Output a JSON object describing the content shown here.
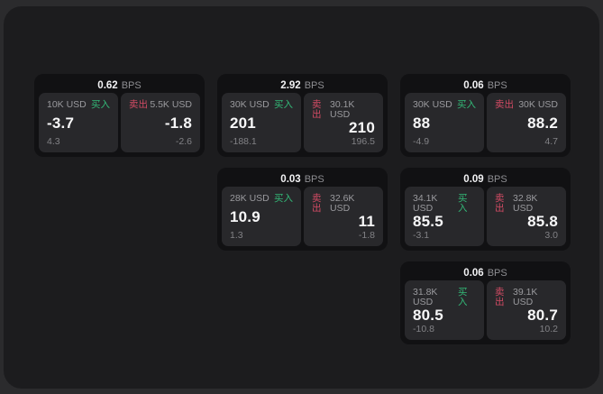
{
  "labels": {
    "bps_unit": "BPS",
    "buy": "买入",
    "sell": "卖出"
  },
  "colors": {
    "buy_green": "#33b877",
    "sell_red": "#d24b64",
    "panel_bg": "#1c1c1e",
    "card_bg": "#111113",
    "subcard_bg": "#28282b"
  },
  "cards": [
    {
      "bps": "0.62",
      "buy": {
        "size": "10K USD",
        "price": "-3.7",
        "change": "4.3"
      },
      "sell": {
        "size": "5.5K USD",
        "price": "-1.8",
        "change": "-2.6"
      }
    },
    {
      "bps": "2.92",
      "buy": {
        "size": "30K USD",
        "price": "201",
        "change": "-188.1"
      },
      "sell": {
        "size": "30.1K USD",
        "price": "210",
        "change": "196.5"
      }
    },
    {
      "bps": "0.06",
      "buy": {
        "size": "30K USD",
        "price": "88",
        "change": "-4.9"
      },
      "sell": {
        "size": "30K USD",
        "price": "88.2",
        "change": "4.7"
      }
    },
    {
      "bps": "0.03",
      "buy": {
        "size": "28K USD",
        "price": "10.9",
        "change": "1.3"
      },
      "sell": {
        "size": "32.6K USD",
        "price": "11",
        "change": "-1.8"
      }
    },
    {
      "bps": "0.09",
      "buy": {
        "size": "34.1K USD",
        "price": "85.5",
        "change": "-3.1"
      },
      "sell": {
        "size": "32.8K USD",
        "price": "85.8",
        "change": "3.0"
      }
    },
    {
      "bps": "0.06",
      "buy": {
        "size": "31.8K USD",
        "price": "80.5",
        "change": "-10.8"
      },
      "sell": {
        "size": "39.1K USD",
        "price": "80.7",
        "change": "10.2"
      }
    }
  ]
}
